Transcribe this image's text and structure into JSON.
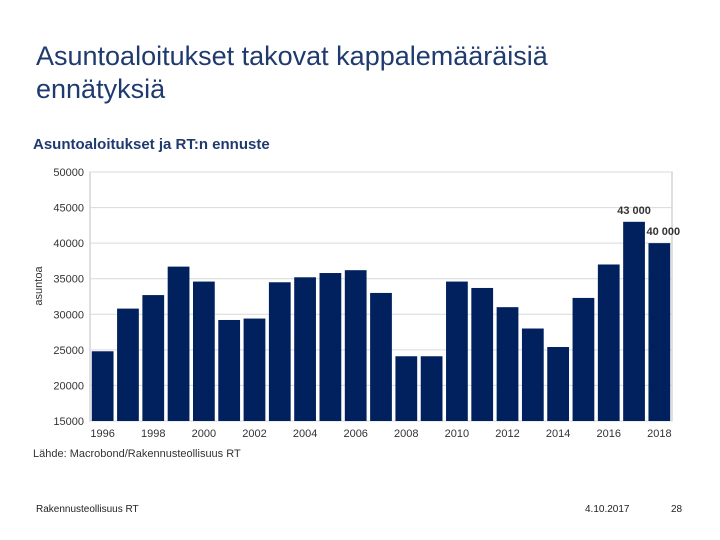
{
  "slide": {
    "title": "Asuntoaloitukset takovat kappalemääräisiä ennätyksiä"
  },
  "chart_data": {
    "type": "bar",
    "title": "Asuntoaloitukset ja RT:n ennuste",
    "xlabel": "",
    "ylabel": "asuntoa",
    "categories": [
      "1996",
      "1997",
      "1998",
      "1999",
      "2000",
      "2001",
      "2002",
      "2003",
      "2004",
      "2005",
      "2006",
      "2007",
      "2008",
      "2009",
      "2010",
      "2011",
      "2012",
      "2013",
      "2014",
      "2015",
      "2016",
      "2017",
      "2018"
    ],
    "x_tick_labels": [
      "1996",
      "1998",
      "2000",
      "2002",
      "2004",
      "2006",
      "2008",
      "2010",
      "2012",
      "2014",
      "2016",
      "2018"
    ],
    "y_tick_labels": [
      "15000",
      "20000",
      "25000",
      "30000",
      "35000",
      "40000",
      "45000",
      "50000"
    ],
    "values": [
      24800,
      30800,
      32700,
      36700,
      34600,
      29200,
      29400,
      34500,
      35200,
      35800,
      36200,
      33000,
      24100,
      24100,
      34600,
      33700,
      31000,
      28000,
      25400,
      32300,
      37000,
      43000,
      40000
    ],
    "ylim": [
      15000,
      50000
    ],
    "grid": true,
    "bar_color": "#00215e",
    "annotations": [
      {
        "category": "2017",
        "text": "43 000"
      },
      {
        "category": "2018",
        "text": "40 000"
      }
    ],
    "source": "Lähde: Macrobond/Rakennusteollisuus RT"
  },
  "footer": {
    "organization": "Rakennusteollisuus RT",
    "date": "4.10.2017",
    "page": "28"
  }
}
